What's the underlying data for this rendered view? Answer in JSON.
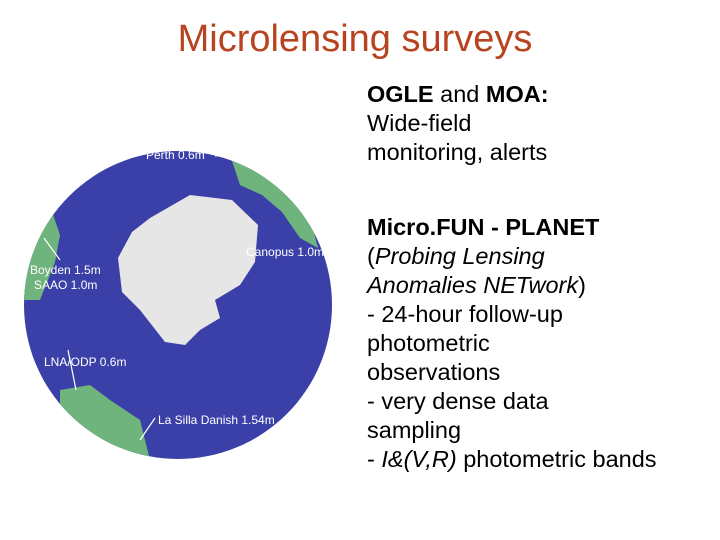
{
  "title": "Microlensing surveys",
  "map": {
    "labels": [
      "Perth 0.6m",
      "Canopus 1.0m",
      "Boyden 1.5m",
      "SAAO 1.0m",
      "LNA/ODP 0.6m",
      "La Silla Danish 1.54m"
    ]
  },
  "blocks": [
    {
      "heading": [
        "OGLE",
        "and",
        "MOA:"
      ],
      "lines": [
        "Wide-field",
        "monitoring, alerts"
      ]
    },
    {
      "heading": "Micro.FUN - PLANET",
      "lines": [
        [
          "(",
          "Probing Lensing"
        ],
        [
          "Anomalies NETwork",
          ")"
        ],
        "- 24-hour follow-up",
        "photometric",
        "observations",
        "- very dense data",
        "sampling",
        [
          "-",
          "I&(V,R)",
          "photometric bands"
        ]
      ]
    }
  ]
}
